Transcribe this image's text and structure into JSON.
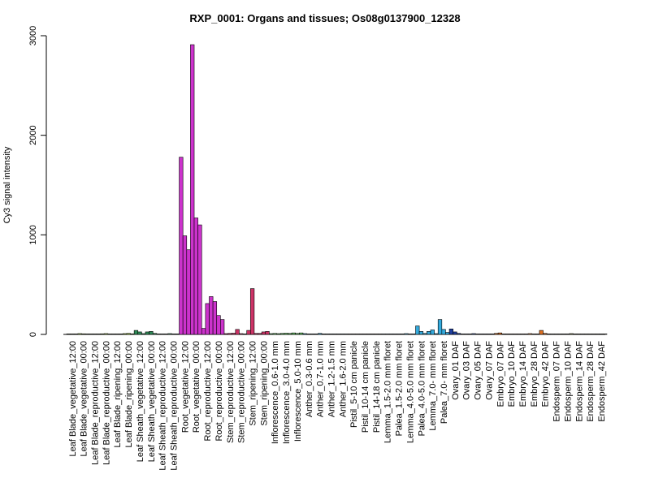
{
  "chart_data": {
    "type": "bar",
    "title": "RXP_0001: Organs and tissues; Os08g0137900_12328",
    "ylabel": "Cy3 signal intensity",
    "xlabel": "",
    "ylim": [
      0,
      3000
    ],
    "yticks": [
      0,
      1000,
      2000,
      3000
    ],
    "grid": false,
    "legend": "none",
    "categories": [
      "Leaf Blade_vegetative_12:00",
      "Leaf Blade_vegetative_00:00",
      "Leaf Blade_reproductive_12:00",
      "Leaf Blade_reproductive_00:00",
      "Leaf Blade_ripening_12:00",
      "Leaf Blade_ripening_00:00",
      "Leaf Sheath_vegetative_12:00",
      "Leaf Sheath_vegetative_00:00",
      "Leaf Sheath_reproductive_12:00",
      "Leaf Sheath_reproductive_00:00",
      "Root_vegetative_12:00",
      "Root_vegetative_00:00",
      "Root_reproductive_12:00",
      "Root_reproductive_00:00",
      "Stem_reproductive_12:00",
      "Stem_reproductive_00:00",
      "Stem_ripening_12:00",
      "Stem_ripening_00:00",
      "Inflorescence_0.6-1.0 mm",
      "Inflorescence_3.0-4.0 mm",
      "Inflorescence_5.0-10 mm",
      "Anther_0.3-0.6 mm",
      "Anther_0.7-1.0 mm",
      "Anther_1.2-1.5 mm",
      "Anther_1.6-2.0 mm",
      "Pistil_5-10 cm panicle",
      "Pistil_10-14 cm panicle",
      "Pistil_14-18 cm panicle",
      "Lemma_1.5-2.0 mm floret",
      "Palea_1.5-2.0 mm floret",
      "Lemma_4.0-5.0 mm floret",
      "Palea_4.0-5.0 mm floret",
      "Lemma_7.0- mm floret",
      "Palea_7.0- mm floret",
      "Ovary_01 DAF",
      "Ovary_03 DAF",
      "Ovary_05 DAF",
      "Ovary_07 DAF",
      "Embryo_07 DAF",
      "Embryo_10 DAF",
      "Embryo_14 DAF",
      "Embryo_28 DAF",
      "Embryo_42 DAF",
      "Endosperm_07 DAF",
      "Endosperm_10 DAF",
      "Endosperm_14 DAF",
      "Endosperm_28 DAF",
      "Endosperm_42 DAF"
    ],
    "series": [
      {
        "bar_colors": [
          "#9ACD32",
          "#9ACD32",
          "#9ACD32",
          "#9ACD32",
          "#9ACD32",
          "#9ACD32",
          "#2E8B57",
          "#2E8B57",
          "#2E8B57",
          "#2E8B57",
          "#CC33CC",
          "#CC33CC",
          "#CC33CC",
          "#CC33CC",
          "#CC3366",
          "#CC3366",
          "#CC3366",
          "#CC3366",
          "#66CC66",
          "#66CC66",
          "#66CC66",
          "#3399CC",
          "#3399CC",
          "#3399CC",
          "#3399CC",
          "#996633",
          "#996633",
          "#996633",
          "#33AADD",
          "#33AADD",
          "#33AADD",
          "#33AADD",
          "#33AADD",
          "#33AADD",
          "#1F3FA0",
          "#1F3FA0",
          "#1F3FA0",
          "#1F3FA0",
          "#E07020",
          "#E07020",
          "#E07020",
          "#E07020",
          "#E07020",
          "#888844",
          "#888844",
          "#888844",
          "#888844",
          "#888844"
        ],
        "values": [
          [
            5,
            5,
            5
          ],
          [
            8,
            6,
            5
          ],
          [
            5,
            5,
            5
          ],
          [
            6,
            8,
            5
          ],
          [
            5,
            5,
            5
          ],
          [
            8,
            10,
            6
          ],
          [
            40,
            25,
            8
          ],
          [
            25,
            30,
            10
          ],
          [
            5,
            5,
            5
          ],
          [
            8,
            5,
            5
          ],
          [
            1780,
            990,
            850
          ],
          [
            2910,
            1170,
            1100
          ],
          [
            60,
            310,
            380
          ],
          [
            330,
            190,
            150
          ],
          [
            8,
            10,
            12
          ],
          [
            50,
            8,
            5
          ],
          [
            40,
            460,
            10
          ],
          [
            10,
            25,
            30
          ],
          [
            8,
            10,
            8
          ],
          [
            10,
            12,
            10
          ],
          [
            15,
            10,
            15
          ],
          [
            8,
            5,
            5
          ],
          [
            5,
            10,
            5
          ],
          [
            5,
            5,
            5
          ],
          [
            5,
            5,
            5
          ],
          [
            5,
            5,
            5
          ],
          [
            5,
            5,
            5
          ],
          [
            5,
            5,
            5
          ],
          [
            5,
            5,
            5
          ],
          [
            5,
            5,
            5
          ],
          [
            8,
            5,
            5
          ],
          [
            85,
            30,
            10
          ],
          [
            30,
            45,
            8
          ],
          [
            150,
            50,
            20
          ],
          [
            55,
            25,
            10
          ],
          [
            5,
            5,
            5
          ],
          [
            8,
            5,
            5
          ],
          [
            5,
            5,
            5
          ],
          [
            10,
            15,
            5
          ],
          [
            5,
            5,
            5
          ],
          [
            5,
            5,
            5
          ],
          [
            8,
            5,
            5
          ],
          [
            40,
            10,
            5
          ],
          [
            5,
            5,
            5
          ],
          [
            5,
            5,
            8
          ],
          [
            5,
            5,
            5
          ],
          [
            5,
            5,
            5
          ],
          [
            5,
            5,
            5
          ]
        ]
      }
    ]
  }
}
